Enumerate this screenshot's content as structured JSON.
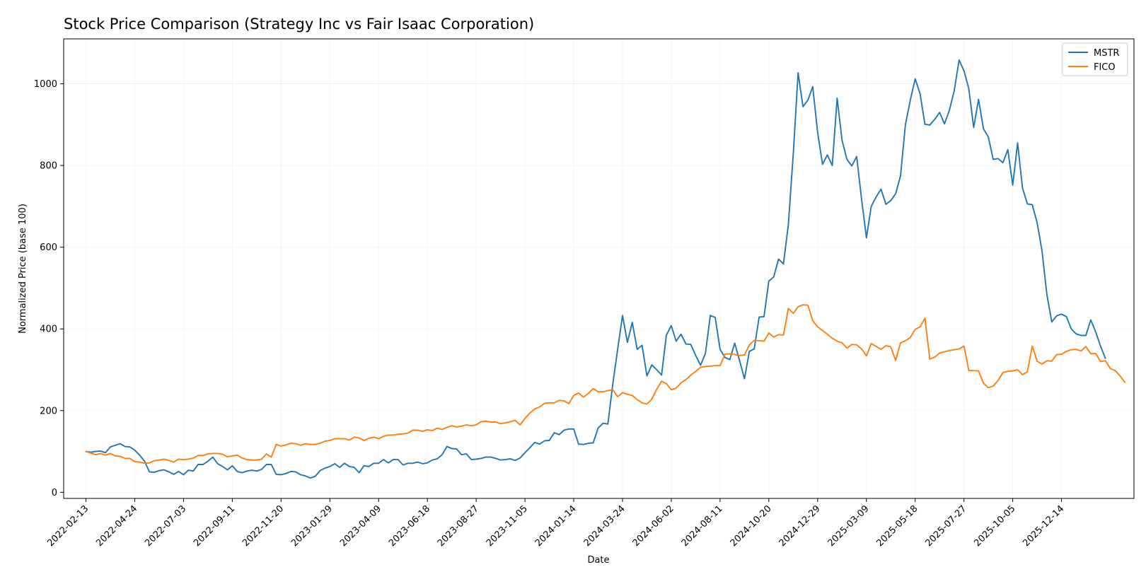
{
  "chart_data": {
    "type": "line",
    "title": "Stock Price Comparison (Strategy Inc vs Fair Isaac Corporation)",
    "xlabel": "Date",
    "ylabel": "Normalized Price (base 100)",
    "ylim": [
      -15,
      1110
    ],
    "xlim": [
      "2022-01-12",
      "2026-03-28"
    ],
    "yticks": [
      0,
      200,
      400,
      600,
      800,
      1000
    ],
    "xticks": [
      "2022-02-13",
      "2022-04-24",
      "2022-07-03",
      "2022-09-11",
      "2022-11-20",
      "2023-01-29",
      "2023-04-09",
      "2023-06-18",
      "2023-08-27",
      "2023-11-05",
      "2024-01-14",
      "2024-03-24",
      "2024-06-02",
      "2024-08-11",
      "2024-10-20",
      "2024-12-29",
      "2025-03-09",
      "2025-05-18",
      "2025-07-27",
      "2025-10-05",
      "2025-12-14"
    ],
    "grid": true,
    "legend_position": "top-right",
    "x_start": "2022-02-13",
    "x_step_days": 7,
    "series": [
      {
        "name": "MSTR",
        "color": "#1f77b4",
        "values": [
          100,
          98,
          100,
          101,
          97,
          111,
          115,
          119,
          112,
          111,
          103,
          91,
          76,
          50,
          49,
          53,
          55,
          50,
          44,
          51,
          43,
          54,
          52,
          68,
          68,
          76,
          86,
          70,
          63,
          55,
          65,
          51,
          48,
          52,
          54,
          52,
          56,
          68,
          68,
          44,
          43,
          46,
          51,
          50,
          43,
          40,
          35,
          39,
          53,
          59,
          63,
          70,
          61,
          71,
          63,
          61,
          48,
          65,
          63,
          71,
          71,
          80,
          72,
          80,
          80,
          67,
          71,
          71,
          74,
          70,
          72,
          79,
          82,
          92,
          112,
          107,
          106,
          92,
          94,
          80,
          81,
          83,
          86,
          86,
          83,
          79,
          80,
          82,
          78,
          84,
          97,
          109,
          122,
          118,
          126,
          127,
          146,
          141,
          152,
          155,
          155,
          118,
          117,
          120,
          121,
          157,
          169,
          167,
          264,
          350,
          433,
          367,
          416,
          350,
          360,
          285,
          312,
          300,
          287,
          385,
          408,
          370,
          387,
          363,
          362,
          335,
          311,
          340,
          433,
          428,
          350,
          330,
          325,
          365,
          322,
          278,
          345,
          351,
          429,
          430,
          517,
          527,
          571,
          559,
          655,
          826,
          1027,
          944,
          960,
          993,
          881,
          803,
          826,
          800,
          965,
          862,
          815,
          799,
          822,
          718,
          623,
          700,
          723,
          742,
          705,
          714,
          731,
          775,
          900,
          960,
          1012,
          976,
          901,
          899,
          913,
          930,
          902,
          935,
          983,
          1058,
          1032,
          988,
          893,
          962,
          890,
          870,
          815,
          817,
          807,
          839,
          752,
          855,
          745,
          706,
          704,
          660,
          591,
          484,
          417,
          432,
          436,
          430,
          400,
          388,
          384,
          384,
          422,
          393,
          358,
          328
        ]
      },
      {
        "name": "FICO",
        "color": "#ff7f0e",
        "values": [
          100,
          96,
          92,
          95,
          91,
          95,
          89,
          88,
          83,
          83,
          75,
          74,
          71,
          72,
          77,
          79,
          81,
          78,
          74,
          81,
          80,
          81,
          84,
          90,
          90,
          94,
          95,
          95,
          93,
          87,
          89,
          91,
          84,
          80,
          79,
          79,
          81,
          94,
          86,
          117,
          113,
          116,
          120,
          119,
          115,
          119,
          117,
          117,
          120,
          125,
          127,
          131,
          131,
          131,
          128,
          135,
          133,
          127,
          132,
          135,
          131,
          137,
          140,
          140,
          142,
          143,
          145,
          152,
          152,
          149,
          153,
          151,
          157,
          154,
          159,
          163,
          160,
          162,
          165,
          163,
          165,
          173,
          174,
          172,
          172,
          168,
          170,
          173,
          176,
          165,
          181,
          194,
          204,
          209,
          218,
          219,
          219,
          225,
          224,
          217,
          237,
          243,
          233,
          242,
          254,
          246,
          246,
          249,
          251,
          234,
          244,
          240,
          237,
          227,
          219,
          216,
          228,
          252,
          272,
          266,
          251,
          255,
          268,
          276,
          287,
          296,
          306,
          308,
          309,
          310,
          310,
          338,
          339,
          337,
          335,
          336,
          361,
          372,
          371,
          370,
          390,
          380,
          386,
          385,
          450,
          438,
          454,
          459,
          458,
          420,
          405,
          396,
          387,
          377,
          370,
          366,
          353,
          362,
          361,
          351,
          334,
          364,
          357,
          350,
          359,
          356,
          323,
          366,
          371,
          379,
          399,
          405,
          426,
          326,
          331,
          341,
          344,
          347,
          349,
          351,
          358,
          298,
          298,
          297,
          267,
          256,
          260,
          274,
          293,
          296,
          297,
          300,
          288,
          295,
          358,
          321,
          314,
          322,
          321,
          337,
          338,
          345,
          349,
          350,
          346,
          357,
          339,
          340,
          320,
          322,
          303,
          298,
          285,
          269
        ]
      }
    ]
  }
}
